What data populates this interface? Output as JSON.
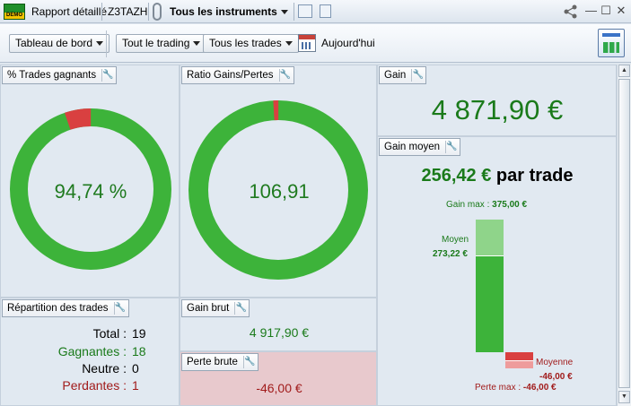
{
  "titlebar": {
    "demo_badge": "DEMO",
    "report_title": "Rapport détaillé",
    "account": "Z3TAZH",
    "instruments": "Tous les instruments",
    "icons": [
      "chain-icon",
      "chart-window-icon",
      "copy-icon",
      "share-icon",
      "minimize-icon",
      "maximize-icon",
      "close-icon"
    ],
    "minimize": "—",
    "maximize": "☐",
    "close": "✕"
  },
  "toolbar": {
    "dashboard": "Tableau de bord",
    "trading": "Tout le trading",
    "trades": "Tous les trades",
    "period": "Aujourd'hui",
    "icons": [
      "calendar-icon",
      "dashboard-config-icon"
    ]
  },
  "panels": {
    "win_rate": {
      "title": "% Trades gagnants",
      "value": "94,74 %",
      "win_fraction": 0.9474
    },
    "ratio": {
      "title": "Ratio Gains/Pertes",
      "value": "106,91",
      "gain_fraction": 0.9907
    },
    "gain": {
      "title": "Gain",
      "value": "4 871,90 €"
    },
    "avg_gain": {
      "title": "Gain moyen",
      "value": "256,42 €",
      "suffix": "par trade",
      "max_label": "Gain max :",
      "max_value": "375,00 €",
      "avg_label": "Moyen",
      "avg_value": "273,22 €",
      "loss_avg_label": "Moyenne",
      "loss_avg_value": "-46,00 €",
      "loss_max_label": "Perte max :",
      "loss_max_value": "-46,00 €",
      "gain_max": 375.0,
      "gain_avg": 273.22,
      "loss_avg": 46.0,
      "loss_max": 46.0
    },
    "distribution": {
      "title": "Répartition des trades",
      "total_label": "Total :",
      "total": "19",
      "winning_label": "Gagnantes :",
      "winning": "18",
      "neutral_label": "Neutre :",
      "neutral": "0",
      "losing_label": "Perdantes :",
      "losing": "1"
    },
    "gross_gain": {
      "title": "Gain brut",
      "value": "4 917,90 €"
    },
    "gross_loss": {
      "title": "Perte brute",
      "value": "-46,00 €"
    }
  },
  "colors": {
    "green": "#3db33a",
    "red": "#d94040",
    "text_green": "#1a7a1a",
    "text_red": "#a11b1b",
    "loss_panel": "#e8c9cd"
  },
  "scrollbar": {
    "up": "▲",
    "down": "▼"
  }
}
